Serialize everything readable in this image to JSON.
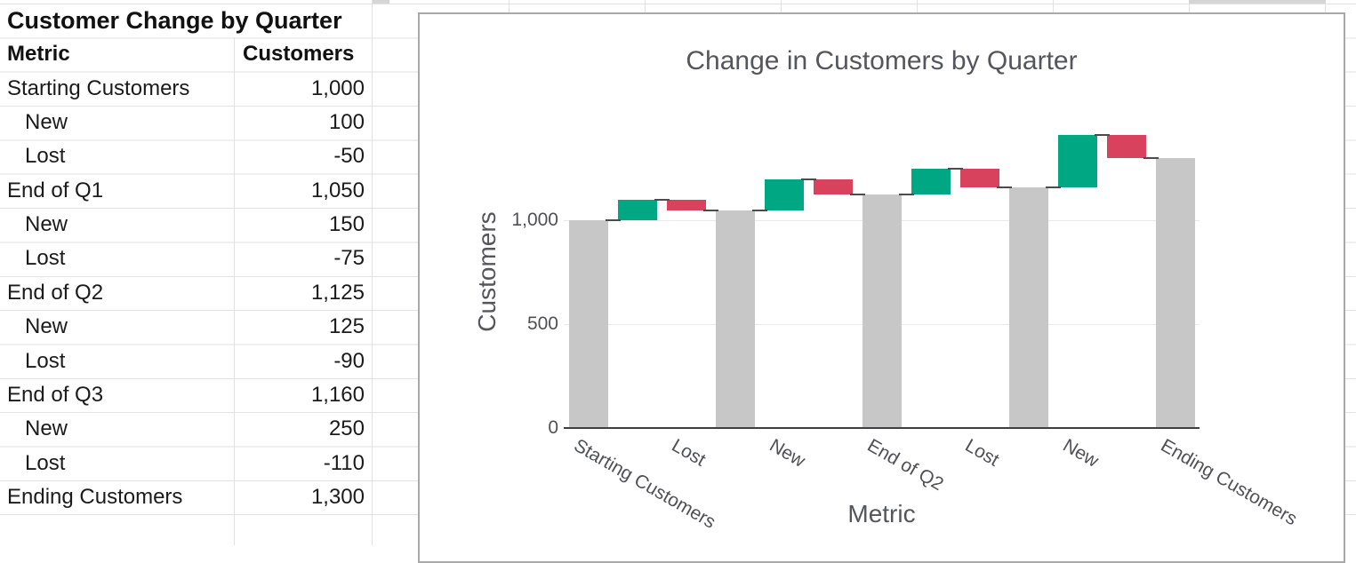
{
  "sheet_table": {
    "title": "Customer Change by Quarter",
    "headers": {
      "metric": "Metric",
      "value": "Customers"
    },
    "rows": [
      {
        "metric": "Starting Customers",
        "value": "1,000",
        "indent": false
      },
      {
        "metric": "New",
        "value": "100",
        "indent": true
      },
      {
        "metric": "Lost",
        "value": "-50",
        "indent": true
      },
      {
        "metric": "End of Q1",
        "value": "1,050",
        "indent": false
      },
      {
        "metric": "New",
        "value": "150",
        "indent": true
      },
      {
        "metric": "Lost",
        "value": "-75",
        "indent": true
      },
      {
        "metric": "End of Q2",
        "value": "1,125",
        "indent": false
      },
      {
        "metric": "New",
        "value": "125",
        "indent": true
      },
      {
        "metric": "Lost",
        "value": "-90",
        "indent": true
      },
      {
        "metric": "End of Q3",
        "value": "1,160",
        "indent": false
      },
      {
        "metric": "New",
        "value": "250",
        "indent": true
      },
      {
        "metric": "Lost",
        "value": "-110",
        "indent": true
      },
      {
        "metric": "Ending Customers",
        "value": "1,300",
        "indent": false
      }
    ]
  },
  "chart_data": {
    "type": "waterfall",
    "title": "Change in Customers by Quarter",
    "xlabel": "Metric",
    "ylabel": "Customers",
    "categories": [
      "Starting Customers",
      "New",
      "Lost",
      "End of Q1",
      "New",
      "Lost",
      "End of Q2",
      "New",
      "Lost",
      "End of Q3",
      "New",
      "Lost",
      "Ending Customers"
    ],
    "measures": [
      "total",
      "relative",
      "relative",
      "total",
      "relative",
      "relative",
      "total",
      "relative",
      "relative",
      "total",
      "relative",
      "relative",
      "total"
    ],
    "values": [
      1000,
      100,
      -50,
      1050,
      150,
      -75,
      1125,
      125,
      -90,
      1160,
      250,
      -110,
      1300
    ],
    "running_totals": [
      1000,
      1100,
      1050,
      1050,
      1200,
      1125,
      1125,
      1250,
      1160,
      1160,
      1410,
      1300,
      1300
    ],
    "x_tick_indices": [
      0,
      2,
      4,
      6,
      8,
      10,
      12
    ],
    "y_ticks": [
      {
        "value": 0,
        "label": "0"
      },
      {
        "value": 500,
        "label": "500"
      },
      {
        "value": 1000,
        "label": "1,000"
      }
    ],
    "ylim": [
      0,
      1480
    ],
    "grid": true,
    "legend": false,
    "colors": {
      "increasing": "#00A783",
      "decreasing": "#D8425C",
      "total": "#C7C7C7",
      "connector": "#4A4C4E"
    }
  }
}
